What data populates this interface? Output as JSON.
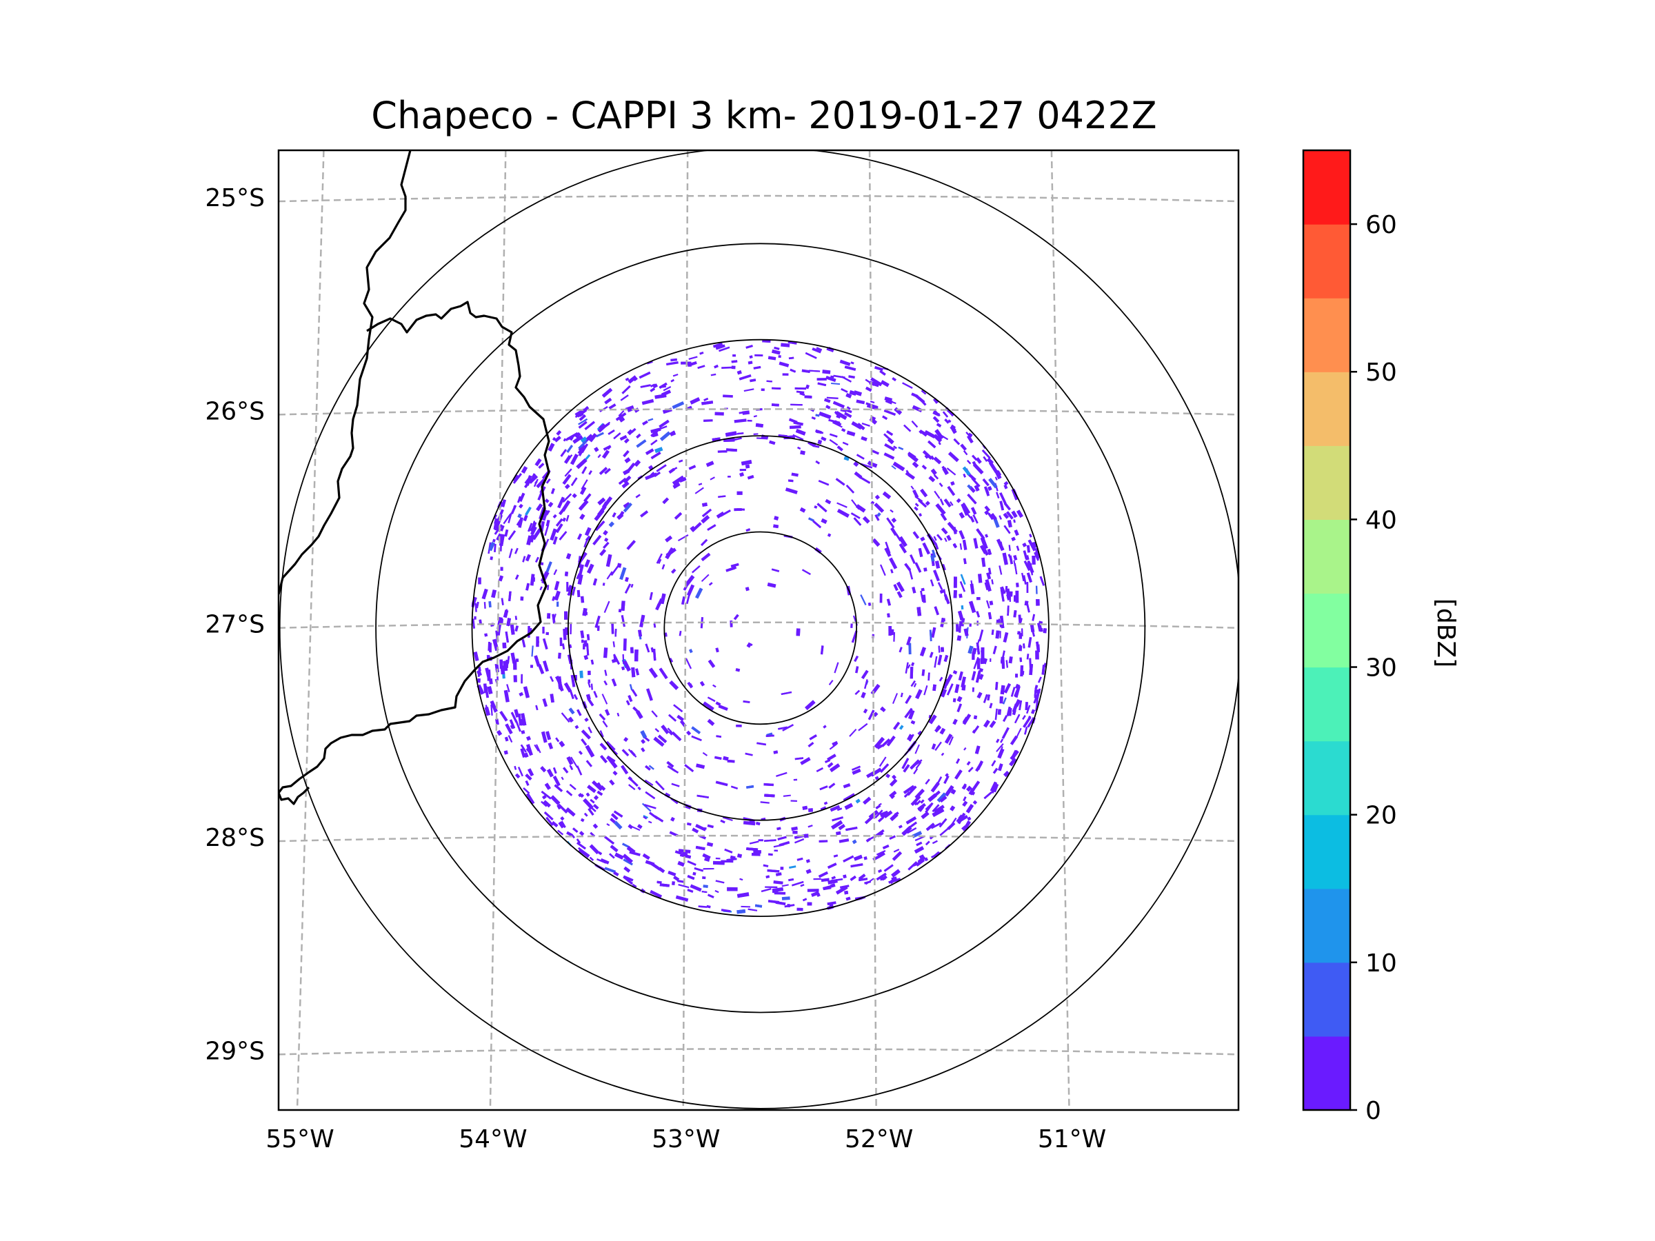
{
  "chart_data": {
    "type": "radar-ppi-map",
    "title": "Chapeco - CAPPI 3 km- 2019-01-27 0422Z",
    "x_ticks": [
      "55°W",
      "54°W",
      "53°W",
      "52°W",
      "51°W"
    ],
    "y_ticks": [
      "25°S",
      "26°S",
      "27°S",
      "28°S",
      "29°S"
    ],
    "xlim": [
      -55.17,
      -50.05
    ],
    "ylim": [
      -29.28,
      -24.78
    ],
    "radar_center": {
      "lon": -52.6,
      "lat": -27.02
    },
    "range_rings_km": [
      50,
      100,
      150,
      200,
      250
    ],
    "colorbar": {
      "label": "[dBZ]",
      "ticks": [
        "0",
        "10",
        "20",
        "30",
        "40",
        "50",
        "60"
      ],
      "min": 0,
      "max": 65,
      "step": 5,
      "colors": [
        "#6a1bff",
        "#3f5bf4",
        "#1f94ec",
        "#0cbde2",
        "#2bdbd0",
        "#4cf1b8",
        "#82ffa0",
        "#a9f48a",
        "#d2dc78",
        "#f4bd6a",
        "#ff8f4f",
        "#ff5a35",
        "#ff1a1a"
      ]
    },
    "echo_summary": {
      "dominant_reflectivity_dBZ": "0-5",
      "occasional_reflectivity_dBZ": "5-15",
      "coverage": "scattered clutter within 150 km ring, densest east and west edges"
    }
  }
}
